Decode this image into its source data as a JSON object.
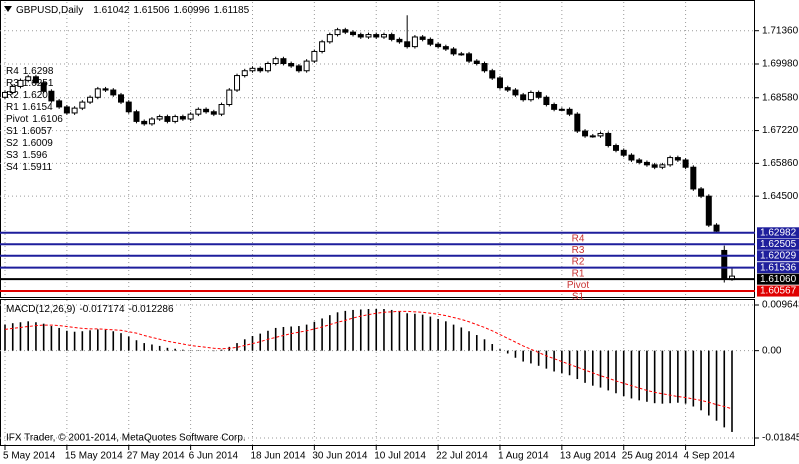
{
  "chart_data": [
    {
      "type": "candlestick",
      "title": "GBPUSD,Daily",
      "categories": [
        "5 May 2014",
        null,
        null,
        null,
        null,
        null,
        null,
        null,
        "15 May 2014",
        null,
        null,
        null,
        null,
        null,
        null,
        null,
        "27 May 2014",
        null,
        null,
        null,
        null,
        null,
        null,
        null,
        "6 Jun 2014",
        null,
        null,
        null,
        null,
        null,
        null,
        null,
        "18 Jun 2014",
        null,
        null,
        null,
        null,
        null,
        null,
        null,
        "30 Jun 2014",
        null,
        null,
        null,
        null,
        null,
        null,
        null,
        "10 Jul 2014",
        null,
        null,
        null,
        null,
        null,
        null,
        null,
        "22 Jul 2014",
        null,
        null,
        null,
        null,
        null,
        null,
        null,
        "1 Aug 2014",
        null,
        null,
        null,
        null,
        null,
        null,
        null,
        "13 Aug 2014",
        null,
        null,
        null,
        null,
        null,
        null,
        null,
        "25 Aug 2014",
        null,
        null,
        null,
        null,
        null,
        null,
        null,
        "4 Sep 2014",
        null,
        null,
        null,
        null,
        null,
        null
      ],
      "open": [
        1.686,
        1.688,
        1.6905,
        1.693,
        1.6945,
        1.692,
        1.6885,
        1.6845,
        1.682,
        1.6795,
        1.6815,
        1.684,
        1.686,
        1.6895,
        1.689,
        1.687,
        1.684,
        1.68,
        1.676,
        1.675,
        1.677,
        1.678,
        1.676,
        1.678,
        1.677,
        1.679,
        1.681,
        1.68,
        1.679,
        1.683,
        1.689,
        1.695,
        1.697,
        1.698,
        1.697,
        1.7,
        1.702,
        1.7,
        1.699,
        1.697,
        1.701,
        1.705,
        1.709,
        1.712,
        1.714,
        1.713,
        1.712,
        1.711,
        1.712,
        1.711,
        1.712,
        1.71,
        1.709,
        1.707,
        1.711,
        1.71,
        1.708,
        1.707,
        1.706,
        1.704,
        1.704,
        1.701,
        1.7,
        1.697,
        1.694,
        1.69,
        1.689,
        1.687,
        1.685,
        1.688,
        1.686,
        1.683,
        1.681,
        1.681,
        1.679,
        1.672,
        1.67,
        1.67,
        1.671,
        1.666,
        1.664,
        1.662,
        1.66,
        1.659,
        1.658,
        1.657,
        1.658,
        1.661,
        1.66,
        1.657,
        1.648,
        1.645,
        1.633,
        1.6225,
        1.61042
      ],
      "high": [
        1.6888,
        1.6913,
        1.6938,
        1.6953,
        1.6953,
        1.6928,
        1.6893,
        1.6853,
        1.6828,
        1.6823,
        1.6848,
        1.6868,
        1.6903,
        1.6903,
        1.6898,
        1.6878,
        1.6848,
        1.6808,
        1.6768,
        1.6778,
        1.6788,
        1.6788,
        1.6788,
        1.6788,
        1.6798,
        1.6818,
        1.6818,
        1.6808,
        1.6838,
        1.6898,
        1.6958,
        1.6978,
        1.6988,
        1.6988,
        1.7008,
        1.7028,
        1.7028,
        1.7008,
        1.6998,
        1.7018,
        1.7058,
        1.7098,
        1.7128,
        1.7148,
        1.7148,
        1.7138,
        1.7128,
        1.7128,
        1.7128,
        1.7128,
        1.7128,
        1.7108,
        1.72,
        1.7118,
        1.7118,
        1.7108,
        1.7088,
        1.7078,
        1.7068,
        1.7048,
        1.7048,
        1.7018,
        1.7008,
        1.6978,
        1.6948,
        1.6908,
        1.6898,
        1.6878,
        1.6888,
        1.6888,
        1.6868,
        1.6838,
        1.6818,
        1.6818,
        1.6798,
        1.6728,
        1.6708,
        1.6718,
        1.6718,
        1.6668,
        1.6648,
        1.6628,
        1.6608,
        1.6598,
        1.6588,
        1.6588,
        1.6618,
        1.6618,
        1.6608,
        1.6578,
        1.6488,
        1.6458,
        1.6338,
        1.6245,
        1.61506
      ],
      "low": [
        1.6852,
        1.6872,
        1.6897,
        1.6922,
        1.6912,
        1.6877,
        1.6837,
        1.6812,
        1.6787,
        1.6787,
        1.6807,
        1.6832,
        1.6852,
        1.6882,
        1.6862,
        1.6832,
        1.6792,
        1.6752,
        1.6742,
        1.6742,
        1.6762,
        1.6752,
        1.6752,
        1.6762,
        1.6762,
        1.6782,
        1.6792,
        1.6782,
        1.6782,
        1.6822,
        1.6882,
        1.6942,
        1.6962,
        1.6962,
        1.6962,
        1.6992,
        1.6992,
        1.6982,
        1.6962,
        1.6962,
        1.7002,
        1.7042,
        1.7082,
        1.7112,
        1.7122,
        1.7112,
        1.7102,
        1.7102,
        1.7102,
        1.7102,
        1.7092,
        1.7082,
        1.7062,
        1.7062,
        1.7092,
        1.7072,
        1.7062,
        1.7052,
        1.7032,
        1.7032,
        1.7002,
        1.6992,
        1.6962,
        1.6932,
        1.6892,
        1.6882,
        1.6862,
        1.6842,
        1.6842,
        1.6852,
        1.6822,
        1.6802,
        1.6802,
        1.6782,
        1.6712,
        1.6692,
        1.6692,
        1.6692,
        1.6652,
        1.6632,
        1.6612,
        1.6592,
        1.6582,
        1.6572,
        1.6562,
        1.6562,
        1.6572,
        1.6592,
        1.6562,
        1.6472,
        1.6442,
        1.6322,
        1.6297,
        1.6092,
        1.60996
      ],
      "close": [
        1.688,
        1.6905,
        1.693,
        1.6945,
        1.692,
        1.6885,
        1.6845,
        1.682,
        1.6795,
        1.6815,
        1.684,
        1.686,
        1.6895,
        1.689,
        1.687,
        1.684,
        1.68,
        1.676,
        1.675,
        1.677,
        1.678,
        1.676,
        1.678,
        1.677,
        1.679,
        1.681,
        1.68,
        1.679,
        1.683,
        1.689,
        1.695,
        1.697,
        1.698,
        1.697,
        1.7,
        1.702,
        1.7,
        1.699,
        1.697,
        1.701,
        1.705,
        1.709,
        1.712,
        1.714,
        1.713,
        1.712,
        1.711,
        1.712,
        1.711,
        1.712,
        1.71,
        1.709,
        1.707,
        1.711,
        1.71,
        1.708,
        1.707,
        1.706,
        1.704,
        1.704,
        1.701,
        1.7,
        1.697,
        1.694,
        1.69,
        1.689,
        1.687,
        1.685,
        1.688,
        1.686,
        1.683,
        1.681,
        1.681,
        1.679,
        1.672,
        1.67,
        1.67,
        1.671,
        1.666,
        1.664,
        1.662,
        1.66,
        1.659,
        1.658,
        1.657,
        1.658,
        1.661,
        1.66,
        1.657,
        1.648,
        1.645,
        1.633,
        1.6305,
        1.611,
        1.61185
      ],
      "up_color": "#ffffff",
      "down_color": "#000000",
      "wick_color": "#000000",
      "ylim": [
        1.6032,
        1.7255
      ],
      "yticks": [
        {
          "value": 1.7136,
          "label": "1.71360"
        },
        {
          "value": 1.6998,
          "label": "1.69980"
        },
        {
          "value": 1.6858,
          "label": "1.68580"
        },
        {
          "value": 1.6722,
          "label": "1.67220"
        },
        {
          "value": 1.6586,
          "label": "1.65860"
        },
        {
          "value": 1.645,
          "label": "1.64500"
        }
      ],
      "grid": true,
      "levels": [
        {
          "name": "R4",
          "value": 1.62982,
          "color": "#1e1e9c"
        },
        {
          "name": "R3",
          "value": 1.62505,
          "color": "#1e1e9c"
        },
        {
          "name": "R2",
          "value": 1.62029,
          "color": "#1e1e9c"
        },
        {
          "name": "R1",
          "value": 1.61536,
          "color": "#1e1e9c"
        },
        {
          "name": "Pivot",
          "value": 1.6106,
          "label": "1.61060",
          "color": "#000000"
        },
        {
          "name": "S1",
          "value": 1.60567,
          "color": "#e00000"
        }
      ],
      "level_label_color": "#c83232",
      "pivot_table": [
        {
          "name": "R4",
          "value": 1.6298
        },
        {
          "name": "R3",
          "value": 1.6251
        },
        {
          "name": "R2",
          "value": 1.6203
        },
        {
          "name": "R1",
          "value": 1.6154
        },
        {
          "name": "Pivot",
          "value": 1.6106
        },
        {
          "name": "S1",
          "value": 1.6057
        },
        {
          "name": "S2",
          "value": 1.6009
        },
        {
          "name": "S3",
          "value": 1.596
        },
        {
          "name": "S4",
          "value": 1.5911
        }
      ]
    },
    {
      "type": "macd",
      "title": "MACD(12,26,9)",
      "series": [
        {
          "color": "#000000",
          "values": [
            0.0055,
            0.0058,
            0.006,
            0.0062,
            0.006,
            0.0057,
            0.0052,
            0.0048,
            0.0042,
            0.004,
            0.0041,
            0.0043,
            0.0045,
            0.0044,
            0.0041,
            0.0037,
            0.003,
            0.0022,
            0.0016,
            0.0013,
            0.001,
            0.0006,
            0.0004,
            0.0002,
            0.0001,
            0.0001,
            0.0,
            -0.0001,
            0.0002,
            0.0008,
            0.0016,
            0.0024,
            0.0031,
            0.0036,
            0.0042,
            0.0048,
            0.005,
            0.0051,
            0.0052,
            0.0055,
            0.0061,
            0.0068,
            0.0075,
            0.0081,
            0.0084,
            0.0086,
            0.0087,
            0.0088,
            0.0088,
            0.0088,
            0.0086,
            0.0083,
            0.0079,
            0.0078,
            0.0076,
            0.0072,
            0.0067,
            0.0062,
            0.0055,
            0.0049,
            0.0041,
            0.0033,
            0.0024,
            0.0014,
            0.0003,
            -0.0006,
            -0.0015,
            -0.0023,
            -0.0027,
            -0.0032,
            -0.0038,
            -0.0044,
            -0.0048,
            -0.0052,
            -0.006,
            -0.0068,
            -0.0074,
            -0.0078,
            -0.0084,
            -0.009,
            -0.0096,
            -0.0101,
            -0.0105,
            -0.0108,
            -0.0111,
            -0.0112,
            -0.0111,
            -0.011,
            -0.0112,
            -0.0118,
            -0.0126,
            -0.0137,
            -0.0148,
            -0.0162,
            -0.017174
          ]
        },
        {
          "color": "#ff0000",
          "values": [
            0.0045,
            0.0047,
            0.0049,
            0.0051,
            0.0053,
            0.0054,
            0.0054,
            0.0053,
            0.0051,
            0.0049,
            0.0047,
            0.0046,
            0.0046,
            0.0045,
            0.0044,
            0.0043,
            0.004,
            0.0037,
            0.0032,
            0.0028,
            0.0024,
            0.002,
            0.0017,
            0.0014,
            0.0011,
            0.0009,
            0.0007,
            0.0005,
            0.0004,
            0.0005,
            0.0007,
            0.0011,
            0.0015,
            0.0019,
            0.0024,
            0.0028,
            0.0032,
            0.0036,
            0.0039,
            0.0042,
            0.0046,
            0.005,
            0.0055,
            0.006,
            0.0064,
            0.0069,
            0.0073,
            0.0076,
            0.0079,
            0.0081,
            0.0082,
            0.0083,
            0.0083,
            0.0082,
            0.0081,
            0.0079,
            0.0077,
            0.0074,
            0.007,
            0.0066,
            0.0061,
            0.0055,
            0.0049,
            0.0042,
            0.0034,
            0.0026,
            0.0018,
            0.001,
            0.0003,
            -0.0004,
            -0.0011,
            -0.0017,
            -0.0023,
            -0.0029,
            -0.0035,
            -0.0041,
            -0.0047,
            -0.0053,
            -0.0058,
            -0.0064,
            -0.0069,
            -0.0074,
            -0.0079,
            -0.0084,
            -0.0088,
            -0.0091,
            -0.0094,
            -0.0097,
            -0.0099,
            -0.0102,
            -0.0105,
            -0.0109,
            -0.0114,
            -0.0118,
            -0.012286
          ]
        }
      ],
      "ylim": [
        -0.01993,
        0.0107
      ],
      "yticks": [
        0.009643,
        {
          "value": 0,
          "label": "0.00"
        },
        -0.018451
      ],
      "grid": true,
      "annotation": "IFX Trader, © 2001-2014, MetaQuotes Software Corp."
    }
  ]
}
